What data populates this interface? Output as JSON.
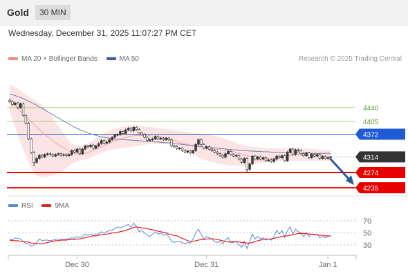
{
  "header": {
    "title": "Gold",
    "timeframe": "30 MIN"
  },
  "datetime": "Wednesday, December 31, 2025 11:07:27 PM CET",
  "legend": {
    "items": [
      {
        "label": "MA 20 + Bollinger Bands",
        "color": "#f28b82"
      },
      {
        "label": "MA 50",
        "color": "#3f5f9a"
      }
    ],
    "credit": "Research © 2025 Trading Central"
  },
  "colors": {
    "up": "#3a3a3a",
    "down": "#ffffff",
    "candle_border": "#2b2b2b",
    "band_fill": "#fde4e4",
    "ma20": "#f4a0a0",
    "ma50": "#6a7fa8",
    "resistance": "#9acd71",
    "pivot": "#1f5bd6",
    "support": "#e60000",
    "current": "#333333",
    "arrow": "#2a5a9c",
    "rsi": "#5b86d6",
    "rsi_ma": "#e61e1e"
  },
  "chart_data": [
    {
      "type": "candlestick",
      "title": "Gold",
      "timeframe": "30 MIN",
      "x_ticks": [
        "Dec 30",
        "Dec 31",
        "Jan 1"
      ],
      "levels": [
        {
          "value": 4440,
          "label": "4440",
          "kind": "resistance"
        },
        {
          "value": 4405,
          "label": "4405",
          "kind": "resistance"
        },
        {
          "value": 4372,
          "label": "4372",
          "kind": "pivot"
        },
        {
          "value": 4314,
          "label": "4314",
          "kind": "current"
        },
        {
          "value": 4274,
          "label": "4274",
          "kind": "support"
        },
        {
          "value": 4235,
          "label": "4235",
          "kind": "support"
        }
      ],
      "forecast": {
        "from": 4314,
        "to": 4235,
        "direction": "down"
      },
      "series": {
        "close": [
          4455,
          4448,
          4452,
          4440,
          4450,
          4420,
          4400,
          4360,
          4325,
          4300,
          4310,
          4318,
          4314,
          4320,
          4322,
          4320,
          4316,
          4320,
          4322,
          4318,
          4320,
          4317,
          4320,
          4330,
          4326,
          4334,
          4322,
          4334,
          4342,
          4340,
          4344,
          4336,
          4342,
          4348,
          4356,
          4349,
          4352,
          4358,
          4364,
          4370,
          4371,
          4379,
          4374,
          4383,
          4387,
          4381,
          4390,
          4384,
          4375,
          4371,
          4364,
          4356,
          4358,
          4360,
          4366,
          4360,
          4362,
          4358,
          4362,
          4358,
          4342,
          4340,
          4335,
          4336,
          4330,
          4326,
          4329,
          4324,
          4330,
          4346,
          4358,
          4346,
          4336,
          4340,
          4333,
          4330,
          4326,
          4322,
          4318,
          4313,
          4322,
          4328,
          4320,
          4316,
          4318,
          4308,
          4300,
          4310,
          4282,
          4296,
          4316,
          4308,
          4314,
          4308,
          4312,
          4304,
          4306,
          4302,
          4308,
          4316,
          4312,
          4317,
          4304,
          4326,
          4334,
          4320,
          4332,
          4330,
          4322,
          4317,
          4324,
          4312,
          4320,
          4316,
          4320,
          4310,
          4315,
          4310,
          4312,
          4314
        ],
        "ma20": [
          4465,
          4455,
          4446,
          4438,
          4431,
          4424,
          4417,
          4410,
          4403,
          4397,
          4390,
          4384,
          4378,
          4372,
          4366,
          4361,
          4355,
          4350,
          4345,
          4341,
          4337,
          4333,
          4329,
          4326,
          4323,
          4321,
          4320,
          4321,
          4323,
          4325,
          4328,
          4331,
          4334,
          4337,
          4340,
          4343,
          4346,
          4349,
          4352,
          4355,
          4357,
          4360,
          4362,
          4364,
          4366,
          4367,
          4368,
          4369,
          4369,
          4370,
          4369,
          4369,
          4368,
          4367,
          4366,
          4366,
          4365,
          4363,
          4362,
          4360,
          4358,
          4356,
          4353,
          4351,
          4349,
          4348,
          4346,
          4344,
          4342,
          4341,
          4340,
          4339,
          4338,
          4337,
          4336,
          4335,
          4334,
          4333,
          4332,
          4331,
          4330,
          4329,
          4328,
          4327,
          4325,
          4323,
          4321,
          4319,
          4317,
          4316,
          4314,
          4313,
          4312,
          4312,
          4311,
          4311,
          4310,
          4310,
          4311,
          4312,
          4313,
          4314,
          4315,
          4316,
          4318,
          4319,
          4320,
          4320,
          4320,
          4321,
          4321,
          4320,
          4319,
          4318,
          4317,
          4316,
          4316,
          4315,
          4314,
          4314
        ],
        "bb_upper": [
          4500,
          4496,
          4492,
          4488,
          4483,
          4479,
          4474,
          4469,
          4464,
          4460,
          4456,
          4451,
          4446,
          4441,
          4434,
          4424,
          4414,
          4404,
          4394,
          4384,
          4375,
          4365,
          4356,
          4349,
          4345,
          4343,
          4342,
          4343,
          4345,
          4348,
          4352,
          4356,
          4361,
          4366,
          4370,
          4374,
          4378,
          4381,
          4384,
          4386,
          4388,
          4390,
          4391,
          4392,
          4393,
          4394,
          4394,
          4394,
          4393,
          4393,
          4392,
          4391,
          4391,
          4390,
          4389,
          4388,
          4387,
          4386,
          4385,
          4384,
          4383,
          4382,
          4381,
          4380,
          4379,
          4378,
          4377,
          4376,
          4375,
          4375,
          4374,
          4374,
          4373,
          4372,
          4371,
          4369,
          4368,
          4366,
          4364,
          4362,
          4360,
          4358,
          4355,
          4353,
          4350,
          4348,
          4346,
          4344,
          4342,
          4341,
          4340,
          4339,
          4338,
          4338,
          4337,
          4337,
          4336,
          4336,
          4336,
          4336,
          4336,
          4336,
          4336,
          4336,
          4337,
          4337,
          4337,
          4337,
          4337,
          4336,
          4336,
          4335,
          4334,
          4334,
          4333,
          4332,
          4332,
          4331,
          4331,
          4330
        ],
        "bb_lower": [
          4430,
          4410,
          4390,
          4370,
          4350,
          4333,
          4316,
          4300,
          4286,
          4274,
          4266,
          4263,
          4262,
          4262,
          4263,
          4265,
          4267,
          4270,
          4273,
          4276,
          4280,
          4285,
          4290,
          4295,
          4299,
          4302,
          4304,
          4306,
          4308,
          4310,
          4312,
          4315,
          4318,
          4321,
          4324,
          4326,
          4328,
          4330,
          4332,
          4334,
          4335,
          4336,
          4337,
          4338,
          4339,
          4340,
          4341,
          4342,
          4343,
          4344,
          4345,
          4346,
          4347,
          4347,
          4347,
          4347,
          4347,
          4347,
          4346,
          4345,
          4344,
          4342,
          4340,
          4337,
          4334,
          4331,
          4328,
          4325,
          4321,
          4317,
          4313,
          4310,
          4307,
          4305,
          4303,
          4301,
          4299,
          4297,
          4296,
          4295,
          4294,
          4293,
          4292,
          4291,
          4291,
          4291,
          4291,
          4292,
          4293,
          4294,
          4295,
          4296,
          4297,
          4298,
          4299,
          4300,
          4301,
          4301,
          4302,
          4303,
          4303,
          4303,
          4304,
          4304,
          4304,
          4304,
          4304,
          4304,
          4304,
          4304,
          4304,
          4304,
          4304,
          4304,
          4304,
          4304,
          4304,
          4304,
          4304,
          4304
        ],
        "ma50": [
          4475,
          4473,
          4471,
          4468,
          4466,
          4463,
          4460,
          4457,
          4453,
          4450,
          4446,
          4442,
          4438,
          4434,
          4430,
          4426,
          4422,
          4418,
          4414,
          4410,
          4406,
          4402,
          4398,
          4394,
          4390,
          4387,
          4384,
          4381,
          4378,
          4375,
          4373,
          4371,
          4369,
          4367,
          4365,
          4364,
          4363,
          4362,
          4361,
          4360,
          4359,
          4359,
          4358,
          4358,
          4357,
          4357,
          4356,
          4356,
          4355,
          4355,
          4354,
          4354,
          4353,
          4353,
          4352,
          4352,
          4351,
          4351,
          4350,
          4350,
          4349,
          4348,
          4347,
          4347,
          4346,
          4345,
          4344,
          4344,
          4343,
          4342,
          4341,
          4341,
          4340,
          4339,
          4338,
          4338,
          4337,
          4336,
          4335,
          4335,
          4334,
          4333,
          4333,
          4332,
          4332,
          4331,
          4331,
          4330,
          4330,
          4329,
          4329,
          4328,
          4328,
          4328,
          4327,
          4327,
          4327,
          4326,
          4326,
          4326,
          4326,
          4325,
          4325,
          4325,
          4325,
          4325,
          4324,
          4324,
          4324,
          4324,
          4324,
          4324,
          4323,
          4323,
          4323,
          4323,
          4323,
          4323,
          4323,
          4323
        ]
      }
    },
    {
      "type": "line",
      "legend": [
        {
          "label": "RSI",
          "color": "#5b86d6"
        },
        {
          "label": "9MA",
          "color": "#e61e1e"
        }
      ],
      "y_ticks": [
        70,
        50,
        30
      ],
      "ylim": [
        20,
        80
      ],
      "series": [
        {
          "name": "RSI",
          "values": [
            40,
            38,
            42,
            41,
            40,
            36,
            32,
            32,
            28,
            30,
            34,
            40,
            37,
            38,
            38,
            37,
            38,
            39,
            40,
            39,
            39,
            40,
            40,
            42,
            41,
            44,
            42,
            44,
            48,
            46,
            48,
            46,
            48,
            48,
            52,
            49,
            52,
            54,
            55,
            57,
            60,
            58,
            60,
            62,
            64,
            59,
            66,
            60,
            52,
            54,
            50,
            46,
            44,
            48,
            52,
            48,
            50,
            46,
            48,
            44,
            36,
            34,
            36,
            36,
            34,
            32,
            34,
            33,
            40,
            50,
            56,
            48,
            40,
            44,
            42,
            40,
            36,
            34,
            36,
            32,
            38,
            42,
            34,
            34,
            36,
            30,
            26,
            36,
            24,
            36,
            48,
            40,
            44,
            40,
            42,
            38,
            40,
            38,
            44,
            54,
            48,
            54,
            42,
            54,
            60,
            48,
            56,
            52,
            50,
            44,
            50,
            44,
            48,
            46,
            48,
            42,
            44,
            42,
            44,
            46
          ]
        },
        {
          "name": "9MA",
          "values": [
            38,
            37,
            37,
            37,
            36,
            36,
            35,
            35,
            33,
            33,
            32,
            32,
            32,
            33,
            34,
            35,
            36,
            37,
            37,
            38,
            38,
            38,
            39,
            39,
            39,
            40,
            40,
            41,
            42,
            43,
            44,
            45,
            45,
            46,
            47,
            47,
            48,
            49,
            50,
            50,
            51,
            52,
            53,
            54,
            56,
            57,
            59,
            60,
            59,
            58,
            58,
            57,
            56,
            55,
            54,
            53,
            52,
            51,
            50,
            48,
            47,
            46,
            45,
            43,
            41,
            39,
            37,
            36,
            36,
            37,
            38,
            39,
            39,
            40,
            40,
            40,
            40,
            39,
            38,
            37,
            36,
            35,
            35,
            36,
            36,
            35,
            34,
            34,
            33,
            33,
            34,
            36,
            37,
            38,
            39,
            40,
            40,
            40,
            41,
            42,
            43,
            44,
            45,
            45,
            46,
            47,
            48,
            49,
            49,
            49,
            49,
            48,
            48,
            47,
            47,
            46,
            46,
            45,
            45,
            45
          ]
        }
      ]
    }
  ]
}
